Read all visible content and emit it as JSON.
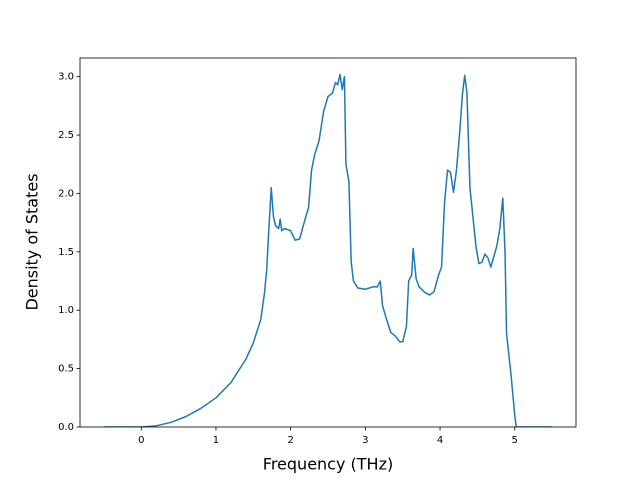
{
  "chart_data": {
    "type": "line",
    "x_label": "Frequency (THz)",
    "y_label": "Density of States",
    "xlim": [
      -0.82,
      5.82
    ],
    "ylim": [
      0,
      3.16
    ],
    "xticks": [
      0,
      1,
      2,
      3,
      4,
      5
    ],
    "yticks": [
      {
        "value": 0,
        "label": "0.0"
      },
      0.5,
      {
        "value": 1,
        "label": "1.0"
      },
      1.5,
      {
        "value": 2,
        "label": "2.0"
      },
      2.5,
      {
        "value": 3,
        "label": "3.0"
      }
    ],
    "grid": false,
    "series": [
      {
        "color": "#1f77b4",
        "x": [
          -0.5,
          0.0,
          0.2,
          0.4,
          0.6,
          0.8,
          1.0,
          1.2,
          1.4,
          1.5,
          1.6,
          1.65,
          1.68,
          1.7,
          1.74,
          1.77,
          1.8,
          1.84,
          1.86,
          1.88,
          1.92,
          2.0,
          2.06,
          2.12,
          2.18,
          2.24,
          2.28,
          2.32,
          2.38,
          2.44,
          2.5,
          2.56,
          2.6,
          2.63,
          2.66,
          2.69,
          2.72,
          2.74,
          2.78,
          2.81,
          2.84,
          2.9,
          3.0,
          3.1,
          3.16,
          3.2,
          3.23,
          3.28,
          3.34,
          3.4,
          3.46,
          3.5,
          3.55,
          3.58,
          3.62,
          3.64,
          3.68,
          3.72,
          3.8,
          3.86,
          3.92,
          3.98,
          4.02,
          4.06,
          4.1,
          4.14,
          4.18,
          4.22,
          4.26,
          4.3,
          4.33,
          4.36,
          4.4,
          4.44,
          4.48,
          4.52,
          4.56,
          4.6,
          4.64,
          4.68,
          4.72,
          4.76,
          4.8,
          4.84,
          4.87,
          4.89,
          4.95,
          5.0,
          5.02,
          5.5
        ],
        "values": [
          0,
          0,
          0.01,
          0.04,
          0.09,
          0.16,
          0.25,
          0.38,
          0.58,
          0.72,
          0.92,
          1.15,
          1.35,
          1.6,
          2.05,
          1.8,
          1.72,
          1.7,
          1.78,
          1.68,
          1.7,
          1.68,
          1.6,
          1.61,
          1.75,
          1.88,
          2.2,
          2.33,
          2.45,
          2.7,
          2.83,
          2.86,
          2.95,
          2.93,
          3.02,
          2.89,
          3.0,
          2.25,
          2.1,
          1.42,
          1.25,
          1.19,
          1.18,
          1.2,
          1.2,
          1.25,
          1.04,
          0.93,
          0.81,
          0.78,
          0.73,
          0.73,
          0.86,
          1.25,
          1.3,
          1.53,
          1.27,
          1.2,
          1.15,
          1.13,
          1.16,
          1.3,
          1.37,
          1.92,
          2.2,
          2.18,
          2.01,
          2.2,
          2.5,
          2.85,
          3.01,
          2.86,
          2.05,
          1.8,
          1.55,
          1.4,
          1.41,
          1.48,
          1.45,
          1.37,
          1.46,
          1.55,
          1.7,
          1.96,
          1.5,
          0.8,
          0.45,
          0.1,
          0,
          0
        ]
      }
    ]
  }
}
